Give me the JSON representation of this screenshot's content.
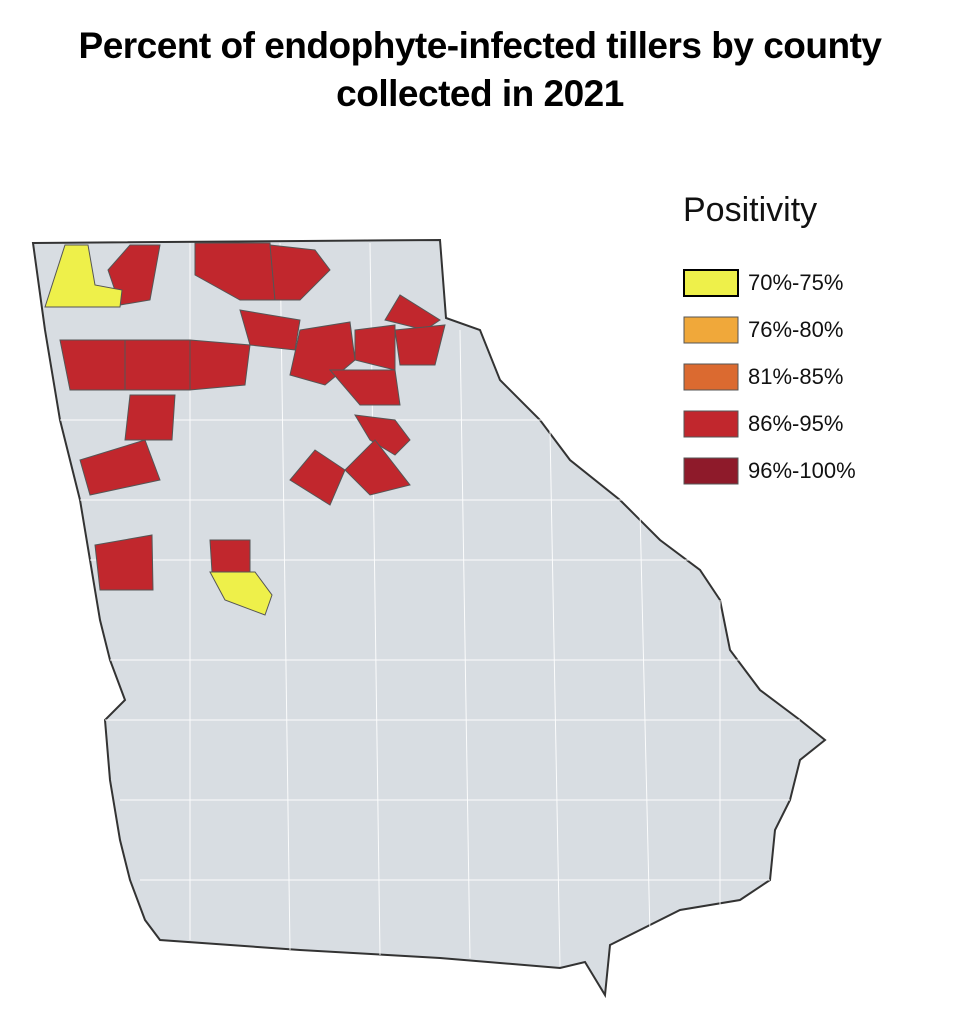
{
  "header": {
    "title": "Percent of endophyte-infected tillers by county collected in 2021"
  },
  "legend": {
    "title": "Positivity",
    "items": [
      {
        "label": "70%-75%",
        "color": "#eef04a"
      },
      {
        "label": "76%-80%",
        "color": "#f0a83a"
      },
      {
        "label": "81%-85%",
        "color": "#db6a30"
      },
      {
        "label": "86%-95%",
        "color": "#c1272d"
      },
      {
        "label": "96%-100%",
        "color": "#8e1a2a"
      }
    ]
  },
  "map": {
    "base_color": "#d8dde2"
  }
}
